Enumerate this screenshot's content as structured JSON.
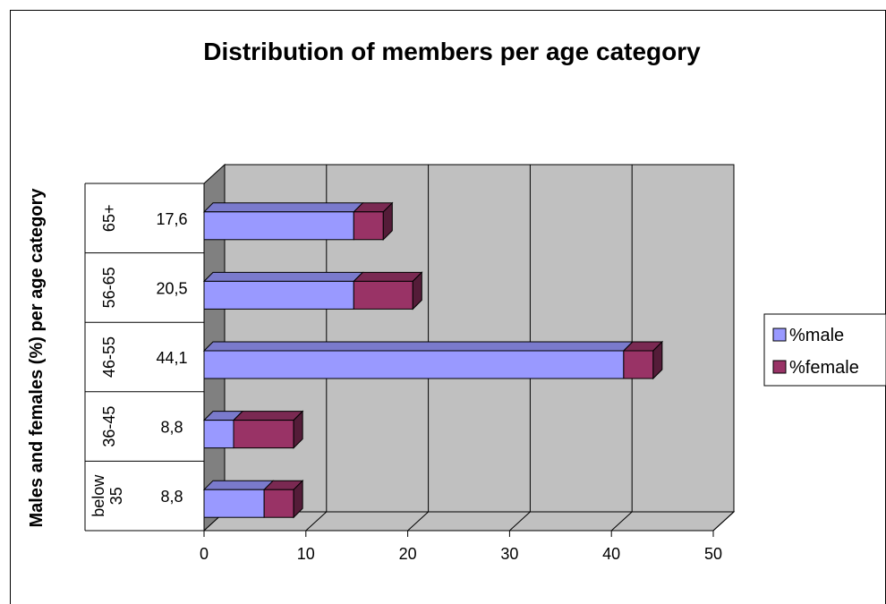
{
  "chart_data": {
    "type": "bar",
    "orientation": "horizontal",
    "stacked": true,
    "three_d": true,
    "title": "Distribution of members per age category",
    "ylabel": "Males and females (%) per age category",
    "xlabel": "",
    "xlim": [
      0,
      50
    ],
    "xticks": [
      "0",
      "10",
      "20",
      "30",
      "40",
      "50"
    ],
    "categories": [
      "below 35",
      "36-45",
      "46-55",
      "56-65",
      "65+"
    ],
    "category_totals": [
      "8,8",
      "8,8",
      "44,1",
      "20,5",
      "17,6"
    ],
    "series": [
      {
        "name": "%male",
        "color": "#9999ff",
        "values": [
          5.9,
          2.9,
          41.2,
          14.7,
          14.7
        ]
      },
      {
        "name": "%female",
        "color": "#993366",
        "values": [
          2.9,
          5.9,
          2.9,
          5.8,
          2.9
        ]
      }
    ],
    "grid": "vertical",
    "plot_background": "#c0c0c0",
    "legend_position": "right"
  }
}
